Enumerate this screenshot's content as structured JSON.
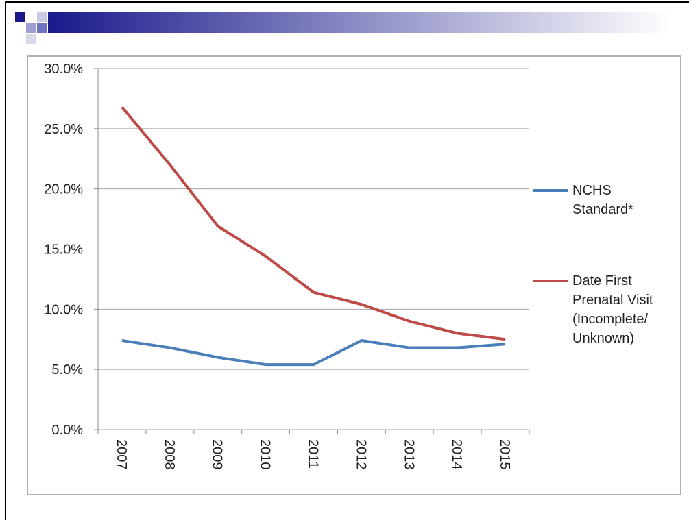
{
  "chart_data": {
    "type": "line",
    "categories": [
      "2007",
      "2008",
      "2009",
      "2010",
      "2011",
      "2012",
      "2013",
      "2014",
      "2015"
    ],
    "series": [
      {
        "name": "NCHS Standard*",
        "color": "#4a7ebb",
        "values": [
          7.4,
          6.8,
          6.0,
          5.4,
          5.4,
          7.4,
          6.8,
          6.8,
          7.1
        ]
      },
      {
        "name": "Date First Prenatal Visit (Incomplete/ Unknown)",
        "color": "#be4b48",
        "values": [
          26.8,
          22.0,
          16.9,
          14.4,
          11.4,
          10.4,
          9.0,
          8.0,
          7.5
        ]
      }
    ],
    "ylim": [
      0,
      30
    ],
    "yticks": [
      {
        "value": 0,
        "label": "0.0%"
      },
      {
        "value": 5,
        "label": "5.0%"
      },
      {
        "value": 10,
        "label": "10.0%"
      },
      {
        "value": 15,
        "label": "15.0%"
      },
      {
        "value": 20,
        "label": "20.0%"
      },
      {
        "value": 25,
        "label": "25.0%"
      },
      {
        "value": 30,
        "label": "30.0%"
      }
    ],
    "grid": true
  }
}
